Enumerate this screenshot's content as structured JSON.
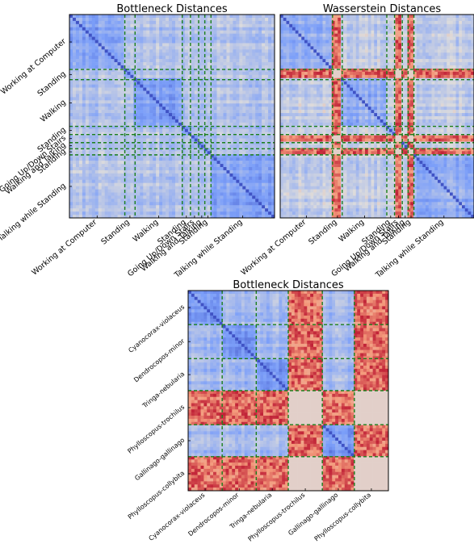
{
  "chart_data": [
    {
      "type": "heatmap",
      "title": "Bottleneck Distances",
      "categories": [
        "Working at Computer",
        "Standing",
        "Walking",
        "Standing",
        "Going Up/Down Stairs",
        "Walking and Talking",
        "Standing",
        "Talking while Standing"
      ],
      "boundaries": [
        0,
        0.27,
        0.32,
        0.55,
        0.59,
        0.63,
        0.66,
        0.69,
        1.0
      ],
      "colormap": "coolwarm",
      "grid": false,
      "separator_style": "green-dashed",
      "hot_band_indices": []
    },
    {
      "type": "heatmap",
      "title": "Wasserstein Distances",
      "categories": [
        "Working at Computer",
        "Standing",
        "Walking",
        "Standing",
        "Going Up/Down Stairs",
        "Walking and Talking",
        "Standing",
        "Talking while Standing"
      ],
      "boundaries": [
        0,
        0.27,
        0.32,
        0.55,
        0.59,
        0.63,
        0.66,
        0.69,
        1.0
      ],
      "colormap": "coolwarm",
      "grid": false,
      "separator_style": "green-dashed",
      "hot_band_indices": [
        1,
        4,
        6
      ]
    },
    {
      "type": "heatmap",
      "title": "Bottleneck Distances",
      "categories": [
        "Cyanocorax-violaceus",
        "Dendrocopos-minor",
        "Tringa-nebularia",
        "Phylloscopus-trochilus",
        "Gallinago-gallinago",
        "Phylloscopus-collybita"
      ],
      "boundaries": [
        0,
        0.17,
        0.34,
        0.5,
        0.67,
        0.83,
        1.0
      ],
      "colormap": "coolwarm",
      "grid": false,
      "separator_style": "green-dashed",
      "hot_band_indices": [
        3,
        5
      ]
    }
  ]
}
